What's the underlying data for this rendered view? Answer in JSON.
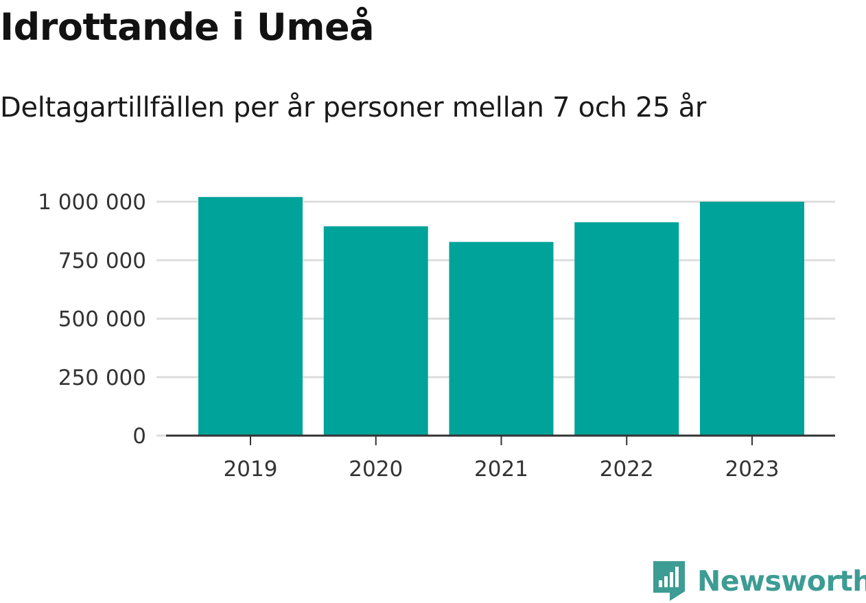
{
  "header": {
    "title": "Idrottande i Umeå",
    "subtitle": "Deltagartillfällen per år personer mellan 7 och 25 år"
  },
  "brand": {
    "name": "Newsworthy",
    "icon": "bar-chart-logo-icon",
    "color": "#3d9c93"
  },
  "colors": {
    "bar": "#00a39a",
    "grid": "#dddddd",
    "axis": "#333333"
  },
  "chart_data": {
    "type": "bar",
    "categories": [
      "2019",
      "2020",
      "2021",
      "2022",
      "2023"
    ],
    "values": [
      1020000,
      895000,
      828000,
      912000,
      1000000
    ],
    "yticks": [
      0,
      250000,
      500000,
      750000,
      1000000
    ],
    "ytick_labels": [
      "0",
      "250 000",
      "500 000",
      "750 000",
      "1 000 000"
    ],
    "ylim": [
      0,
      1030000
    ],
    "grid": true,
    "title": "Idrottande i Umeå",
    "xlabel": "",
    "ylabel": ""
  }
}
